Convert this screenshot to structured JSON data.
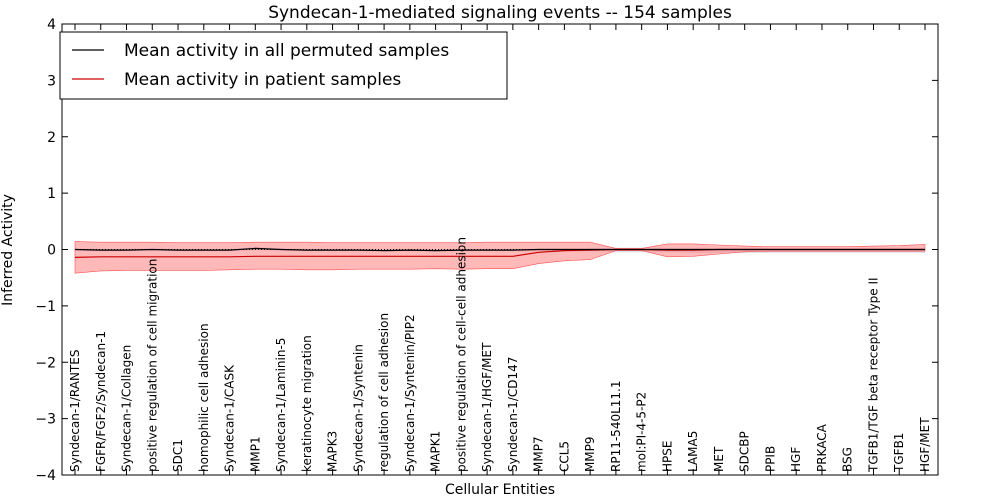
{
  "chart_data": {
    "type": "line",
    "title": "Syndecan-1-mediated signaling events -- 154 samples",
    "xlabel": "Cellular Entities",
    "ylabel": "Inferred Activity",
    "ylim": [
      -4,
      4
    ],
    "yticks": [
      -4,
      -3,
      -2,
      -1,
      0,
      1,
      2,
      3,
      4
    ],
    "ytick_labels": [
      "−4",
      "−3",
      "−2",
      "−1",
      "0",
      "1",
      "2",
      "3",
      "4"
    ],
    "legend_position": "top-left",
    "categories": [
      "Syndecan-1/RANTES",
      "FGFR/FGF2/Syndecan-1",
      "Syndecan-1/Collagen",
      "positive regulation of cell migration",
      "SDC1",
      "homophilic cell adhesion",
      "Syndecan-1/CASK",
      "MMP1",
      "Syndecan-1/Laminin-5",
      "keratinocyte migration",
      "MAPK3",
      "Syndecan-1/Syntenin",
      "regulation of cell adhesion",
      "Syndecan-1/Syntenin/PIP2",
      "MAPK1",
      "positive regulation of cell-cell adhesion",
      "Syndecan-1/HGF/MET",
      "Syndecan-1/CD147",
      "MMP7",
      "CCL5",
      "MMP9",
      "RP11-540L11.1",
      "mol:PI-4-5-P2",
      "HPSE",
      "LAMA5",
      "MET",
      "SDCBP",
      "PPIB",
      "HGF",
      "PRKACA",
      "BSG",
      "TGFB1/TGF beta receptor Type II",
      "TGFB1",
      "HGF/MET"
    ],
    "series": [
      {
        "name": "Mean activity in all permuted samples",
        "color": "#000000",
        "values": [
          0.0,
          -0.01,
          -0.01,
          0.0,
          -0.01,
          -0.01,
          -0.01,
          0.02,
          0.0,
          -0.01,
          -0.01,
          -0.01,
          -0.02,
          -0.01,
          -0.02,
          -0.01,
          -0.01,
          -0.01,
          0.0,
          0.0,
          0.0,
          0.0,
          0.0,
          0.0,
          0.0,
          0.0,
          0.0,
          0.0,
          0.0,
          0.0,
          0.0,
          0.0,
          0.0,
          0.0
        ],
        "band_lower": [
          -0.02,
          -0.03,
          -0.03,
          -0.02,
          -0.03,
          -0.03,
          -0.03,
          -0.01,
          -0.02,
          -0.03,
          -0.03,
          -0.03,
          -0.04,
          -0.03,
          -0.04,
          -0.03,
          -0.03,
          -0.03,
          -0.03,
          -0.03,
          -0.03,
          -0.05,
          -0.05,
          -0.05,
          -0.06,
          -0.06,
          -0.06,
          -0.06,
          -0.06,
          -0.06,
          -0.06,
          -0.06,
          -0.06,
          -0.06
        ],
        "band_upper": [
          0.02,
          0.01,
          0.01,
          0.02,
          0.01,
          0.01,
          0.01,
          0.04,
          0.02,
          0.01,
          0.01,
          0.01,
          0.0,
          0.01,
          0.0,
          0.01,
          0.01,
          0.01,
          0.02,
          0.02,
          0.02,
          0.03,
          0.03,
          0.03,
          0.03,
          0.03,
          0.03,
          0.03,
          0.03,
          0.03,
          0.03,
          0.03,
          0.03,
          0.03
        ],
        "band_color": "#c8c8d8"
      },
      {
        "name": "Mean activity in patient samples",
        "color": "#cc0000",
        "values": [
          -0.14,
          -0.13,
          -0.13,
          -0.13,
          -0.13,
          -0.13,
          -0.13,
          -0.12,
          -0.12,
          -0.12,
          -0.12,
          -0.12,
          -0.12,
          -0.12,
          -0.12,
          -0.12,
          -0.12,
          -0.12,
          -0.05,
          -0.02,
          -0.01,
          0.0,
          0.0,
          -0.01,
          -0.01,
          0.0,
          0.0,
          0.0,
          0.0,
          0.0,
          0.0,
          0.0,
          0.0,
          0.0
        ],
        "band_lower": [
          -0.42,
          -0.38,
          -0.37,
          -0.37,
          -0.37,
          -0.37,
          -0.36,
          -0.35,
          -0.35,
          -0.36,
          -0.36,
          -0.35,
          -0.35,
          -0.35,
          -0.34,
          -0.35,
          -0.34,
          -0.34,
          -0.25,
          -0.2,
          -0.18,
          -0.02,
          -0.02,
          -0.13,
          -0.12,
          -0.08,
          -0.04,
          -0.03,
          -0.03,
          -0.03,
          -0.03,
          -0.03,
          -0.03,
          -0.03
        ],
        "band_upper": [
          0.14,
          0.13,
          0.13,
          0.13,
          0.12,
          0.12,
          0.12,
          0.13,
          0.13,
          0.13,
          0.12,
          0.12,
          0.12,
          0.12,
          0.12,
          0.12,
          0.13,
          0.13,
          0.13,
          0.13,
          0.13,
          0.02,
          0.02,
          0.1,
          0.1,
          0.08,
          0.06,
          0.05,
          0.05,
          0.05,
          0.05,
          0.06,
          0.07,
          0.09
        ],
        "band_color": "#ff8080"
      }
    ]
  }
}
